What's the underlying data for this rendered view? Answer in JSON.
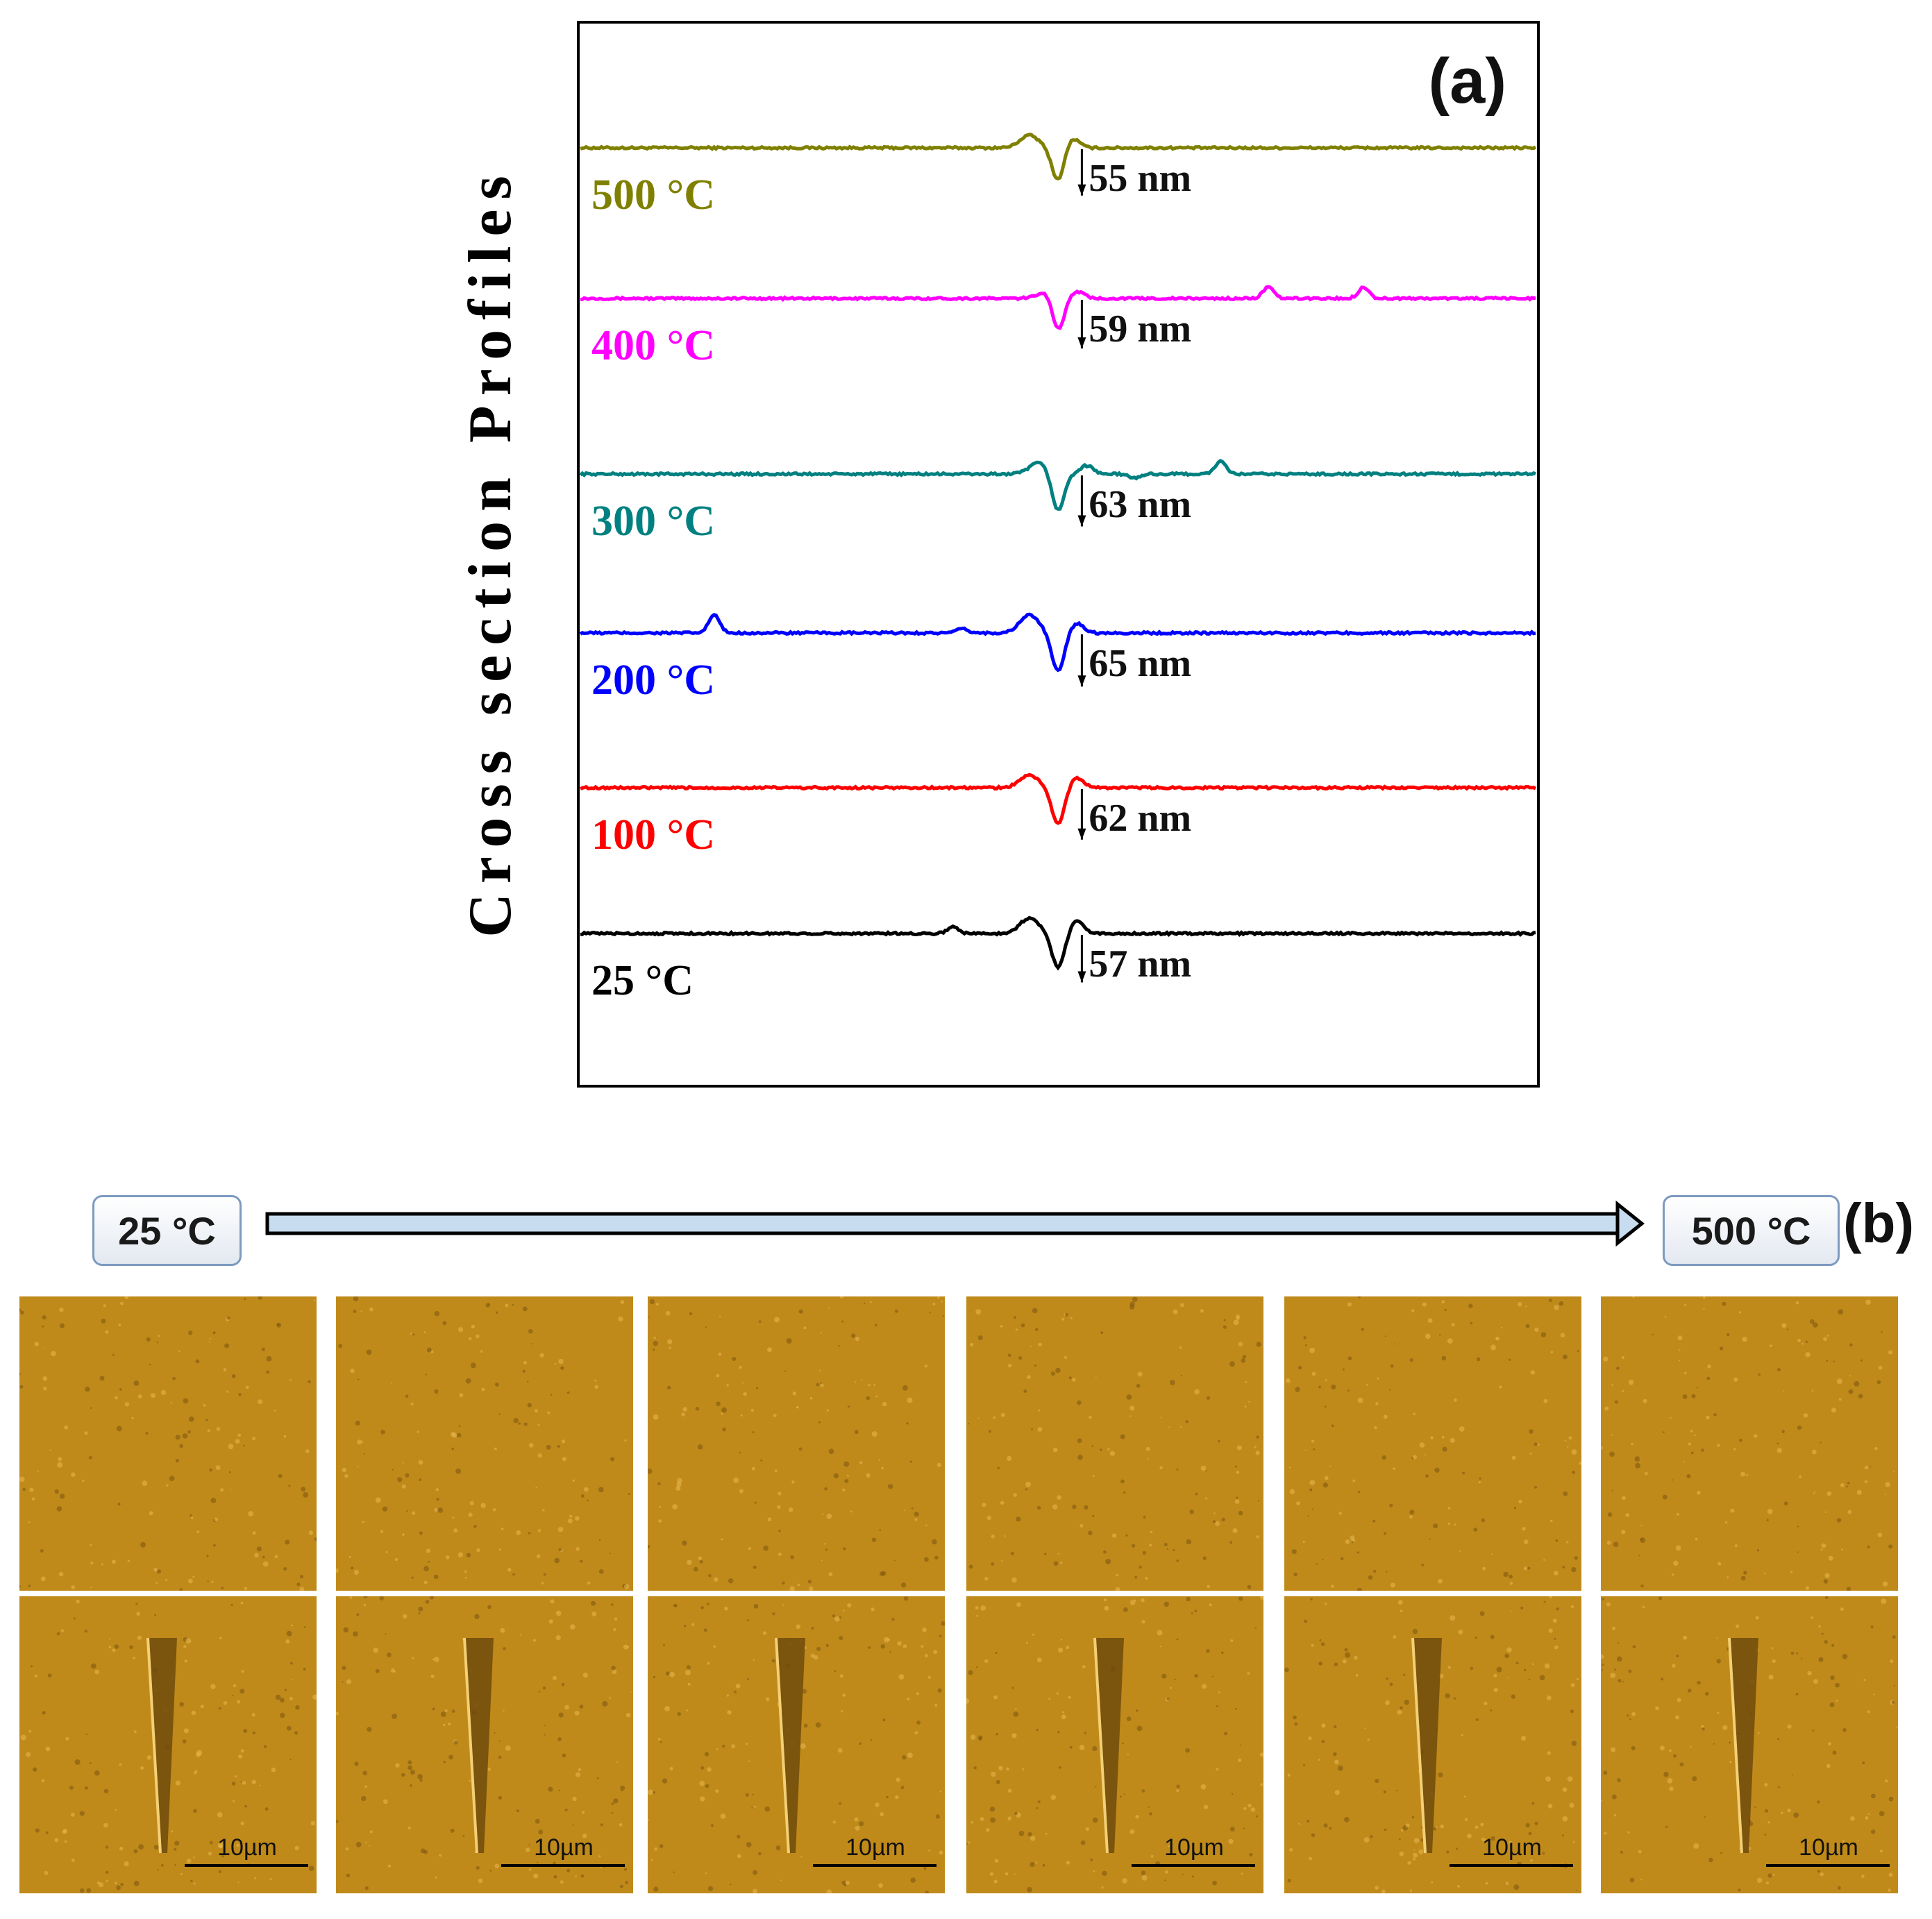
{
  "chart_data": {
    "type": "line",
    "title": "(a)",
    "ylabel": "Cross section Profiles",
    "xlabel": "",
    "grid": false,
    "x_units": "relative scan position (0 to 100)",
    "depth_units": "nm",
    "series": [
      {
        "name": "500 °C",
        "label": "500 °C",
        "color": "#808000",
        "depth_nm": 55,
        "depth_label": "55 nm",
        "bumps": [
          {
            "x": 47,
            "h": 18
          },
          {
            "x": 51.5,
            "h": 14
          }
        ],
        "features": []
      },
      {
        "name": "400 °C",
        "label": "400 °C",
        "color": "#ff00ff",
        "depth_nm": 59,
        "depth_label": "59 nm",
        "bumps": [
          {
            "x": 49,
            "h": 12
          },
          {
            "x": 52,
            "h": 10
          }
        ],
        "features": [
          {
            "x": 72,
            "h": 16
          },
          {
            "x": 82,
            "h": 16
          }
        ]
      },
      {
        "name": "300 °C",
        "label": "300 °C",
        "color": "#008080",
        "depth_nm": 63,
        "depth_label": "63 nm",
        "bumps": [
          {
            "x": 48,
            "h": 16
          },
          {
            "x": 53,
            "h": 12
          }
        ],
        "features": [
          {
            "x": 67,
            "h": 18
          },
          {
            "x": 58,
            "h": -6
          }
        ]
      },
      {
        "name": "200 °C",
        "label": "200 °C",
        "color": "#0000ff",
        "depth_nm": 65,
        "depth_label": "65 nm",
        "bumps": [
          {
            "x": 47,
            "h": 26
          },
          {
            "x": 52,
            "h": 14
          }
        ],
        "features": [
          {
            "x": 14,
            "h": 26
          },
          {
            "x": 40,
            "h": 6
          }
        ]
      },
      {
        "name": "100 °C",
        "label": "100 °C",
        "color": "#ff0000",
        "depth_nm": 62,
        "depth_label": "62 nm",
        "bumps": [
          {
            "x": 47,
            "h": 18
          },
          {
            "x": 52,
            "h": 14
          }
        ],
        "features": []
      },
      {
        "name": "25 °C",
        "label": "25 °C",
        "color": "#000000",
        "depth_nm": 57,
        "depth_label": "57 nm",
        "bumps": [
          {
            "x": 47,
            "h": 22
          },
          {
            "x": 52,
            "h": 18
          }
        ],
        "features": [
          {
            "x": 39,
            "h": 10
          }
        ]
      }
    ]
  },
  "panel_b": {
    "label": "(b)",
    "start_temp": "25 °C",
    "end_temp": "500 °C",
    "scale_bar": "10µm",
    "arrow_color": "#c8dcf0",
    "tile_color": "#c08a1a",
    "columns": 6
  }
}
